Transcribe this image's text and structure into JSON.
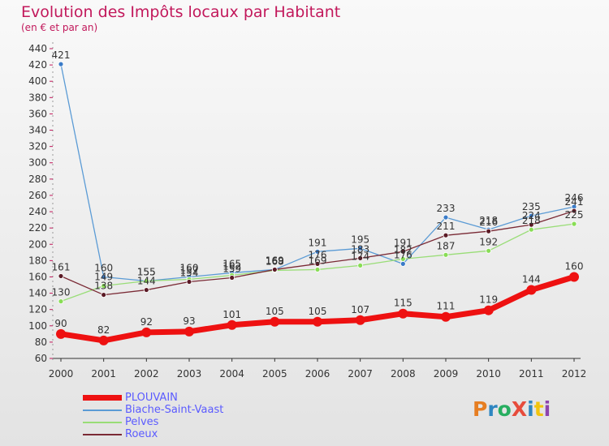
{
  "title": "Evolution des Impôts locaux par Habitant",
  "subtitle": "(en € et par an)",
  "logo": {
    "text": "ProXiti",
    "colors": [
      "#e67e22",
      "#2e86c1",
      "#27ae60",
      "#e74c3c",
      "#2e86c1",
      "#f1c40f",
      "#8e44ad"
    ]
  },
  "chart_data": {
    "type": "line",
    "title": "Evolution des Impôts locaux par Habitant",
    "ylabel": "(en € et par an)",
    "xlabel": "",
    "x": [
      "2000",
      "2001",
      "2002",
      "2003",
      "2004",
      "2005",
      "2006",
      "2007",
      "2008",
      "2009",
      "2010",
      "2011",
      "2012"
    ],
    "ylim": [
      60,
      440
    ],
    "yticks": [
      60,
      80,
      100,
      120,
      140,
      160,
      180,
      200,
      220,
      240,
      260,
      280,
      300,
      320,
      340,
      360,
      380,
      400,
      420,
      440
    ],
    "grid": false,
    "legend_position": "bottom-left",
    "series": [
      {
        "name": "PLOUVAIN",
        "color": "#ee1111",
        "values": [
          90,
          82,
          92,
          93,
          101,
          105,
          105,
          107,
          115,
          111,
          119,
          144,
          160
        ]
      },
      {
        "name": "Biache-Saint-Vaast",
        "color": "#5b9bd5",
        "values": [
          421,
          160,
          155,
          160,
          165,
          169,
          191,
          195,
          176,
          233,
          218,
          235,
          246
        ]
      },
      {
        "name": "Pelves",
        "color": "#99dd77",
        "values": [
          130,
          149,
          155,
          157,
          162,
          168,
          169,
          174,
          182,
          187,
          192,
          218,
          225
        ]
      },
      {
        "name": "Roeux",
        "color": "#7a2a35",
        "values": [
          161,
          138,
          144,
          154,
          159,
          169,
          176,
          183,
          191,
          211,
          216,
          224,
          241
        ]
      }
    ]
  }
}
